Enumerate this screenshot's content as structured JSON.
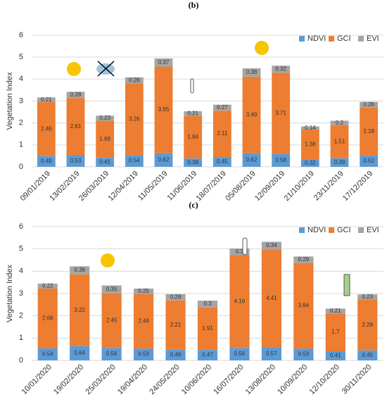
{
  "chart_data": [
    {
      "type": "bar",
      "stacked": true,
      "title": "(b)",
      "ylabel": "Vegetation Index",
      "categories": [
        "09/01/2019",
        "13/02/2019",
        "26/03/2019",
        "12/04/2019",
        "11/05/2019",
        "11/06/2019",
        "18/07/2019",
        "05/08/2019",
        "12/09/2019",
        "21/10/2019",
        "23/11/2019",
        "17/12/2019"
      ],
      "series": [
        {
          "name": "NDVI",
          "color": "#5b9bd5",
          "values": [
            0.49,
            0.53,
            0.41,
            0.54,
            0.62,
            0.38,
            0.45,
            0.62,
            0.58,
            0.32,
            0.39,
            0.52
          ]
        },
        {
          "name": "GCI",
          "color": "#ed7d31",
          "values": [
            2.46,
            2.61,
            1.69,
            3.26,
            3.95,
            1.94,
            2.11,
            3.49,
            3.71,
            1.38,
            1.51,
            2.18
          ]
        },
        {
          "name": "EVI",
          "color": "#a5a5a5",
          "values": [
            0.21,
            0.28,
            0.23,
            0.28,
            0.37,
            0.21,
            0.27,
            0.38,
            0.32,
            0.14,
            0.2,
            0.26
          ]
        }
      ],
      "ylim": [
        0,
        6
      ],
      "yticks": [
        0,
        1,
        2,
        3,
        4,
        5,
        6
      ],
      "grid": true,
      "legend": "top-right"
    },
    {
      "type": "bar",
      "stacked": true,
      "title": "(c)",
      "ylabel": "Vegetation Index",
      "categories": [
        "10/01/2020",
        "19/02/2020",
        "25/03/2020",
        "19/04/2020",
        "24/05/2020",
        "10/06/2020",
        "16/07/2020",
        "13/08/2020",
        "10/09/2020",
        "12/10/2020",
        "30/11/2020"
      ],
      "series": [
        {
          "name": "NDVI",
          "color": "#5b9bd5",
          "values": [
            0.54,
            0.64,
            0.56,
            0.53,
            0.48,
            0.47,
            0.56,
            0.57,
            0.53,
            0.41,
            0.45
          ]
        },
        {
          "name": "GCI",
          "color": "#ed7d31",
          "values": [
            2.68,
            3.22,
            2.45,
            2.44,
            2.21,
            1.91,
            4.16,
            4.41,
            3.84,
            1.7,
            2.28
          ]
        },
        {
          "name": "EVI",
          "color": "#a5a5a5",
          "values": [
            0.22,
            0.36,
            0.35,
            0.25,
            0.28,
            0.3,
            0.3,
            0.34,
            0.29,
            0.21,
            0.23
          ]
        }
      ],
      "ylim": [
        0,
        6
      ],
      "yticks": [
        0,
        1,
        2,
        3,
        4,
        5,
        6
      ],
      "grid": true,
      "legend": "top-right"
    }
  ]
}
